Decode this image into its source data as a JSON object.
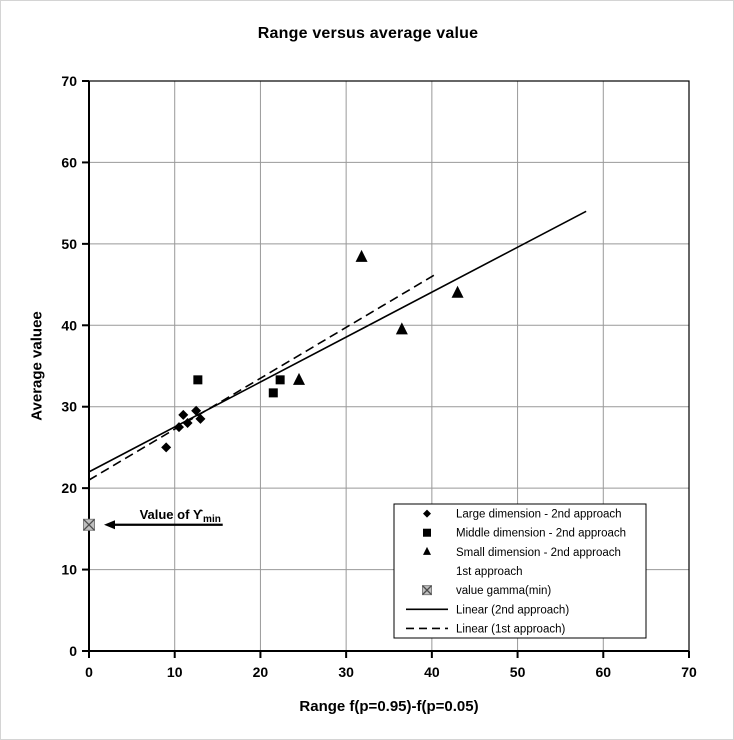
{
  "chart_data": {
    "type": "scatter",
    "title": "Range versus average value",
    "xlabel": "Range f(p=0.95)-f(p=0.05)",
    "ylabel": "Average valuee",
    "xlim": [
      0,
      70
    ],
    "ylim": [
      0,
      70
    ],
    "xticks": [
      0,
      10,
      20,
      30,
      40,
      50,
      60,
      70
    ],
    "yticks": [
      0,
      10,
      20,
      30,
      40,
      50,
      60,
      70
    ],
    "grid": true,
    "grid_color": "#999999",
    "axis_color": "#000000",
    "legend_position": "lower-right-inside",
    "series": [
      {
        "name": "Large dimension - 2nd approach",
        "marker": "diamond",
        "color": "#000000",
        "points": [
          [
            9,
            25
          ],
          [
            10.5,
            27.5
          ],
          [
            11,
            29
          ],
          [
            11.5,
            28
          ],
          [
            12.5,
            29.5
          ],
          [
            13,
            28.5
          ]
        ]
      },
      {
        "name": "Middle dimension - 2nd approach",
        "marker": "square",
        "color": "#000000",
        "points": [
          [
            12.7,
            33.3
          ],
          [
            21.5,
            31.7
          ],
          [
            22.3,
            33.3
          ]
        ]
      },
      {
        "name": "Small dimension - 2nd approach / 1st approach",
        "marker": "triangle",
        "color": "#000000",
        "points": [
          [
            24.5,
            33.3
          ],
          [
            31.8,
            48.4
          ],
          [
            36.5,
            39.5
          ],
          [
            43,
            44
          ]
        ]
      },
      {
        "name": "value gamma(min)",
        "marker": "x-square",
        "color": "#bfbfbf",
        "stroke": "#808080",
        "cross_color": "#4d4d4d",
        "points": [
          [
            0,
            15.5
          ]
        ]
      }
    ],
    "trendlines": [
      {
        "name": "Linear (2nd approach)",
        "style": "solid",
        "color": "#000000",
        "from": [
          0,
          22
        ],
        "to": [
          58,
          54
        ]
      },
      {
        "name": "Linear (1st approach)",
        "style": "dashed",
        "color": "#000000",
        "from": [
          0,
          21
        ],
        "to": [
          40.5,
          46.3
        ]
      }
    ],
    "annotation": {
      "text": "Value of ϒ",
      "sub": "min",
      "y": 15.5,
      "arrow_from_x": 15.6,
      "arrow_to_x": 1.75,
      "label_x": 5.9
    },
    "legend": {
      "entries": [
        {
          "marker": "diamond",
          "label": "Large dimension - 2nd approach"
        },
        {
          "marker": "square",
          "label": "Middle dimension - 2nd approach"
        },
        {
          "marker": "triangle",
          "label": "Small dimension - 2nd approach"
        },
        {
          "marker": "none",
          "label": "1st approach"
        },
        {
          "marker": "x-square",
          "label": "value gamma(min)"
        },
        {
          "marker": "solid-line",
          "label": "Linear (2nd approach)"
        },
        {
          "marker": "dashed-line",
          "label": "Linear (1st approach)"
        }
      ]
    }
  }
}
